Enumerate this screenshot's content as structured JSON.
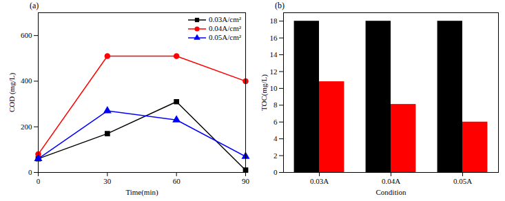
{
  "chart_data": [
    {
      "type": "line",
      "title": "(a)",
      "x_label": "Time(min)",
      "y_label": "COD (mg/L)",
      "x": [
        0,
        30,
        60,
        90
      ],
      "xlim": [
        0,
        90
      ],
      "xticks": [
        0,
        30,
        60,
        90
      ],
      "ylim": [
        0,
        700
      ],
      "yticks": [
        0,
        200,
        400,
        600
      ],
      "legend": "top-right",
      "series": [
        {
          "name": "0.03A/cm²",
          "color": "#000000",
          "marker": "square",
          "values": [
            60,
            170,
            310,
            10
          ]
        },
        {
          "name": "0.04A/cm²",
          "color": "#ff0000",
          "marker": "circle",
          "values": [
            80,
            510,
            510,
            400
          ]
        },
        {
          "name": "0.05A/cm²",
          "color": "#0000ff",
          "marker": "triangle",
          "values": [
            60,
            270,
            230,
            70
          ]
        }
      ]
    },
    {
      "type": "bar",
      "title": "(b)",
      "x_label": "Condition",
      "y_label": "TOC(mg/L)",
      "categories": [
        "0.03A",
        "0.04A",
        "0.05A"
      ],
      "ylim": [
        0,
        19
      ],
      "yticks": [
        0,
        2,
        4,
        6,
        8,
        10,
        12,
        14,
        16,
        18
      ],
      "series": [
        {
          "color": "#000000",
          "values": [
            18,
            18,
            18
          ]
        },
        {
          "color": "#ff0000",
          "values": [
            10.8,
            8.1,
            6.0
          ]
        }
      ]
    }
  ]
}
